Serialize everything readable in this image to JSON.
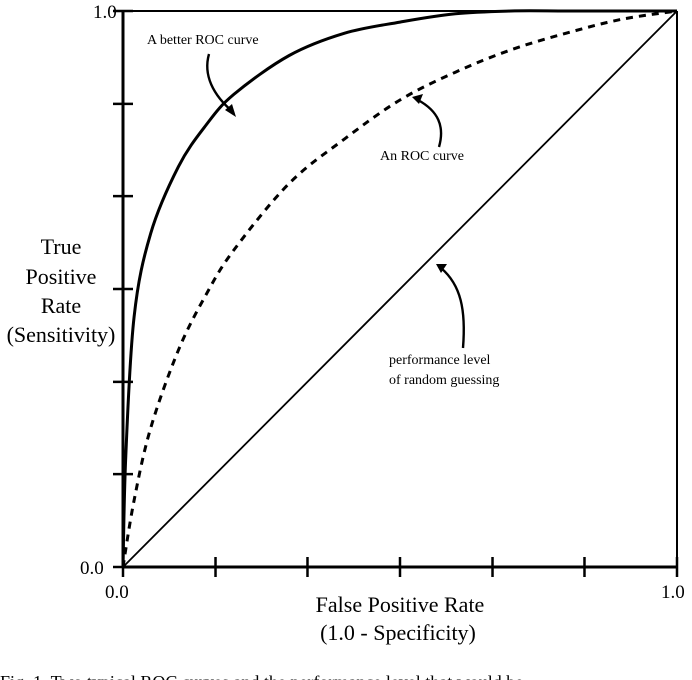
{
  "chart_data": {
    "type": "line",
    "title": "",
    "xlabel": [
      "False Positive Rate",
      "(1.0 - Specificity)"
    ],
    "ylabel": [
      "True",
      "Positive",
      "Rate",
      "(Sensitivity)"
    ],
    "xlim": [
      0,
      1
    ],
    "ylim": [
      0,
      1
    ],
    "x_tick_labels": [
      {
        "value": 0,
        "label": "0.0"
      },
      {
        "value": 1,
        "label": "1.0"
      }
    ],
    "y_tick_labels": [
      {
        "value": 0,
        "label": "0.0"
      },
      {
        "value": 1,
        "label": "1.0"
      }
    ],
    "x_ticks": [
      0,
      0.167,
      0.333,
      0.5,
      0.667,
      0.833,
      1
    ],
    "y_ticks": [
      0,
      0.167,
      0.333,
      0.5,
      0.667,
      0.833,
      1
    ],
    "grid": false,
    "series": [
      {
        "id": "better",
        "style": "solid",
        "x": [
          0,
          0.005,
          0.02,
          0.05,
          0.1,
          0.15,
          0.2,
          0.3,
          0.4,
          0.5,
          0.6,
          0.7,
          0.8,
          0.9,
          1.0
        ],
        "y": [
          0,
          0.2,
          0.45,
          0.6,
          0.72,
          0.795,
          0.85,
          0.92,
          0.96,
          0.98,
          0.995,
          1.0,
          1.0,
          1.0,
          1.0
        ]
      },
      {
        "id": "roc",
        "style": "dashed",
        "x": [
          0,
          0.02,
          0.05,
          0.1,
          0.15,
          0.2,
          0.3,
          0.4,
          0.5,
          0.6,
          0.7,
          0.8,
          0.9,
          1.0
        ],
        "y": [
          0,
          0.12,
          0.25,
          0.39,
          0.49,
          0.57,
          0.69,
          0.77,
          0.84,
          0.89,
          0.93,
          0.96,
          0.985,
          1.0
        ]
      },
      {
        "id": "random",
        "style": "solid",
        "x": [
          0,
          1
        ],
        "y": [
          0,
          1
        ]
      }
    ],
    "annotations": [
      {
        "id": "ann-better",
        "lines": [
          "A better ROC curve"
        ]
      },
      {
        "id": "ann-roc",
        "lines": [
          "An ROC curve"
        ]
      },
      {
        "id": "ann-random",
        "lines": [
          "performance level",
          "of random guessing"
        ]
      }
    ]
  },
  "caption": "Fig. 1.   Two typical ROC curves and the performance level that would be"
}
